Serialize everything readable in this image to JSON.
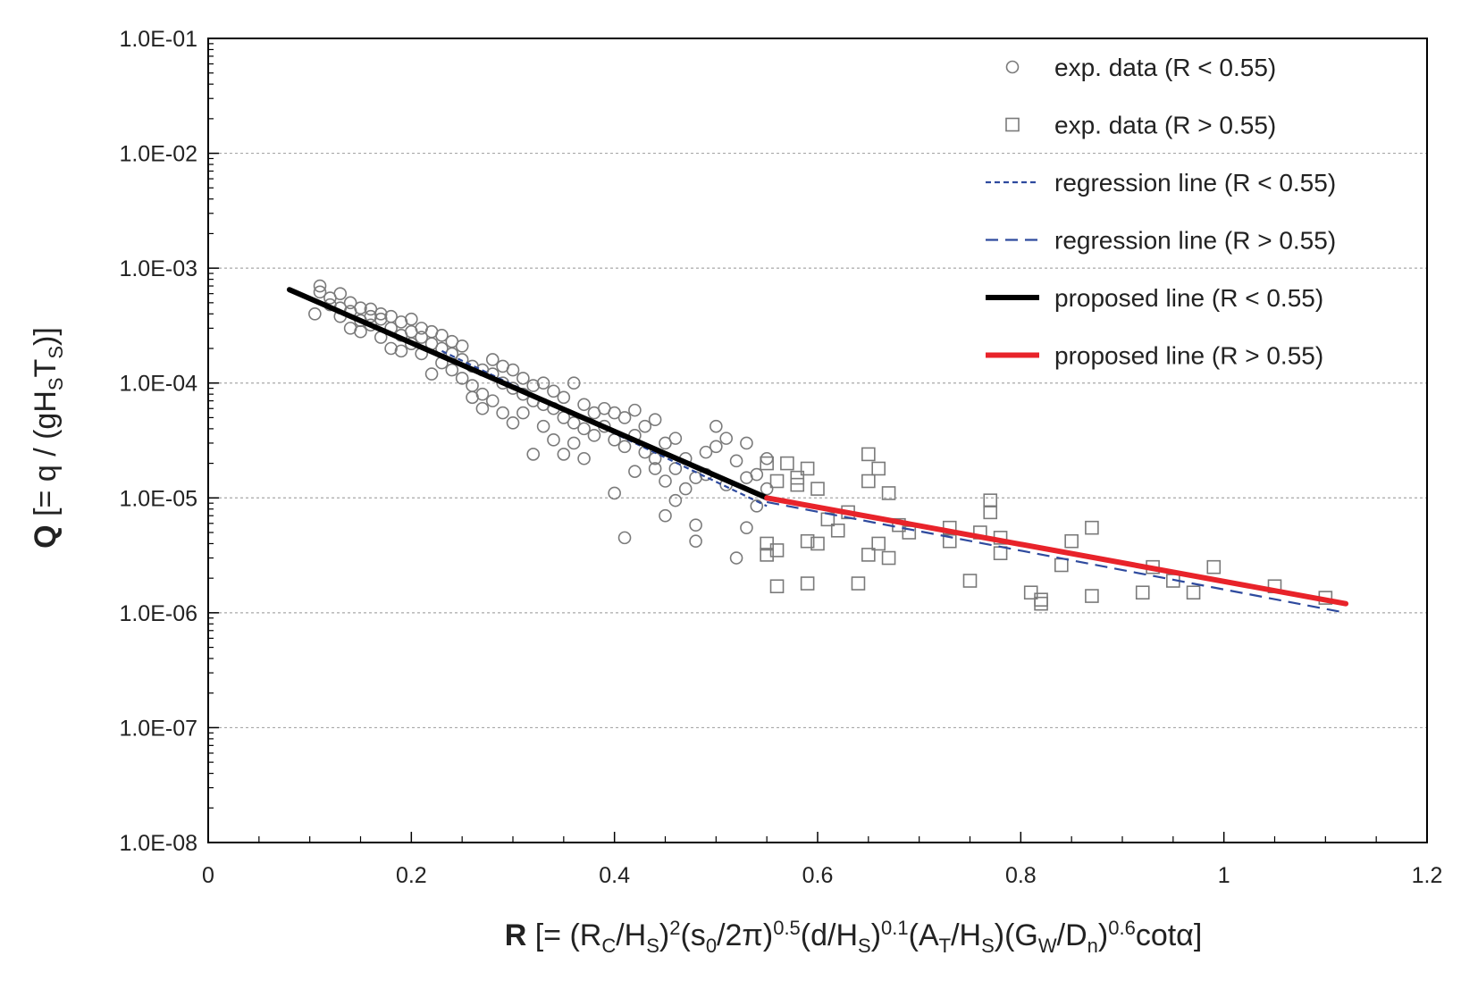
{
  "chart_data": {
    "type": "scatter",
    "xlim": [
      0,
      1.2
    ],
    "ylim": [
      1e-08,
      0.1
    ],
    "yscale": "log",
    "grid": "horizontal dotted",
    "legend_position": "top-right",
    "x_ticks": [
      {
        "value": 0,
        "label": "0"
      },
      {
        "value": 0.2,
        "label": "0.2"
      },
      {
        "value": 0.4,
        "label": "0.4"
      },
      {
        "value": 0.6,
        "label": "0.6"
      },
      {
        "value": 0.8,
        "label": "0.8"
      },
      {
        "value": 1.0,
        "label": "1"
      },
      {
        "value": 1.2,
        "label": "1.2"
      }
    ],
    "y_ticks": [
      {
        "value": 0.1,
        "label": "1.0E-01"
      },
      {
        "value": 0.01,
        "label": "1.0E-02"
      },
      {
        "value": 0.001,
        "label": "1.0E-03"
      },
      {
        "value": 0.0001,
        "label": "1.0E-04"
      },
      {
        "value": 1e-05,
        "label": "1.0E-05"
      },
      {
        "value": 1e-06,
        "label": "1.0E-06"
      },
      {
        "value": 1e-07,
        "label": "1.0E-07"
      },
      {
        "value": 1e-08,
        "label": "1.0E-08"
      }
    ],
    "xlabel": {
      "symbol": "R",
      "parts": [
        {
          "t": " [= (R"
        },
        {
          "t": "C",
          "s": "sub"
        },
        {
          "t": "/H"
        },
        {
          "t": "S",
          "s": "sub"
        },
        {
          "t": ")"
        },
        {
          "t": "2",
          "s": "sup"
        },
        {
          "t": "(s"
        },
        {
          "t": "0",
          "s": "sub"
        },
        {
          "t": "/2π)"
        },
        {
          "t": "0.5",
          "s": "sup"
        },
        {
          "t": "(d/H"
        },
        {
          "t": "S",
          "s": "sub"
        },
        {
          "t": ")"
        },
        {
          "t": "0.1",
          "s": "sup"
        },
        {
          "t": "(A"
        },
        {
          "t": "T",
          "s": "sub"
        },
        {
          "t": "/H"
        },
        {
          "t": "S",
          "s": "sub"
        },
        {
          "t": ")"
        },
        {
          "t": "(G"
        },
        {
          "t": "W",
          "s": "sub"
        },
        {
          "t": "/D"
        },
        {
          "t": "n",
          "s": "sub"
        },
        {
          "t": ")"
        },
        {
          "t": "0.6",
          "s": "sup"
        },
        {
          "t": "cotα]"
        }
      ]
    },
    "ylabel": {
      "symbol": "Q",
      "parts": [
        {
          "t": " [= q / (gH"
        },
        {
          "t": "S",
          "s": "sub"
        },
        {
          "t": "T"
        },
        {
          "t": "S",
          "s": "sub"
        },
        {
          "t": ")]"
        }
      ]
    },
    "series": [
      {
        "name": "exp. data (R < 0.55)",
        "kind": "scatter",
        "marker": "circle",
        "color": "#7a7a7a",
        "points": [
          [
            0.11,
            0.00062
          ],
          [
            0.11,
            0.0007
          ],
          [
            0.105,
            0.0004
          ],
          [
            0.12,
            0.00048
          ],
          [
            0.12,
            0.00055
          ],
          [
            0.13,
            0.00045
          ],
          [
            0.13,
            0.0006
          ],
          [
            0.13,
            0.00038
          ],
          [
            0.14,
            0.00042
          ],
          [
            0.14,
            0.0005
          ],
          [
            0.14,
            0.0003
          ],
          [
            0.15,
            0.00035
          ],
          [
            0.15,
            0.00045
          ],
          [
            0.15,
            0.00028
          ],
          [
            0.16,
            0.00038
          ],
          [
            0.16,
            0.00032
          ],
          [
            0.16,
            0.00044
          ],
          [
            0.17,
            0.00036
          ],
          [
            0.17,
            0.00025
          ],
          [
            0.17,
            0.0004
          ],
          [
            0.18,
            0.0003
          ],
          [
            0.18,
            0.0002
          ],
          [
            0.18,
            0.00038
          ],
          [
            0.19,
            0.00026
          ],
          [
            0.19,
            0.00034
          ],
          [
            0.19,
            0.00019
          ],
          [
            0.2,
            0.00028
          ],
          [
            0.2,
            0.00036
          ],
          [
            0.2,
            0.00022
          ],
          [
            0.21,
            0.00025
          ],
          [
            0.21,
            0.00018
          ],
          [
            0.21,
            0.0003
          ],
          [
            0.22,
            0.00022
          ],
          [
            0.22,
            0.00012
          ],
          [
            0.22,
            0.00028
          ],
          [
            0.23,
            0.0002
          ],
          [
            0.23,
            0.00015
          ],
          [
            0.23,
            0.00026
          ],
          [
            0.24,
            0.00018
          ],
          [
            0.24,
            0.00013
          ],
          [
            0.24,
            0.00023
          ],
          [
            0.25,
            0.00016
          ],
          [
            0.25,
            0.00011
          ],
          [
            0.25,
            0.00021
          ],
          [
            0.26,
            0.00014
          ],
          [
            0.26,
            9.5e-05
          ],
          [
            0.26,
            7.5e-05
          ],
          [
            0.27,
            0.00013
          ],
          [
            0.27,
            8e-05
          ],
          [
            0.27,
            6e-05
          ],
          [
            0.28,
            0.00012
          ],
          [
            0.28,
            7e-05
          ],
          [
            0.28,
            0.00016
          ],
          [
            0.29,
            0.0001
          ],
          [
            0.29,
            5.5e-05
          ],
          [
            0.29,
            0.00014
          ],
          [
            0.3,
            9e-05
          ],
          [
            0.3,
            4.5e-05
          ],
          [
            0.3,
            0.00013
          ],
          [
            0.31,
            8e-05
          ],
          [
            0.31,
            5.5e-05
          ],
          [
            0.31,
            0.00011
          ],
          [
            0.32,
            7e-05
          ],
          [
            0.32,
            2.4e-05
          ],
          [
            0.32,
            9.5e-05
          ],
          [
            0.33,
            6.5e-05
          ],
          [
            0.33,
            4.2e-05
          ],
          [
            0.33,
            0.0001
          ],
          [
            0.34,
            6e-05
          ],
          [
            0.34,
            3.2e-05
          ],
          [
            0.34,
            8.5e-05
          ],
          [
            0.35,
            5e-05
          ],
          [
            0.35,
            2.4e-05
          ],
          [
            0.35,
            7.5e-05
          ],
          [
            0.36,
            4.5e-05
          ],
          [
            0.36,
            3e-05
          ],
          [
            0.36,
            0.0001
          ],
          [
            0.37,
            4e-05
          ],
          [
            0.37,
            2.2e-05
          ],
          [
            0.37,
            6.5e-05
          ],
          [
            0.38,
            3.5e-05
          ],
          [
            0.38,
            5.5e-05
          ],
          [
            0.39,
            4.2e-05
          ],
          [
            0.39,
            6e-05
          ],
          [
            0.4,
            3.2e-05
          ],
          [
            0.4,
            1.1e-05
          ],
          [
            0.4,
            5.5e-05
          ],
          [
            0.41,
            2.8e-05
          ],
          [
            0.41,
            4.5e-06
          ],
          [
            0.41,
            5e-05
          ],
          [
            0.42,
            3.5e-05
          ],
          [
            0.42,
            1.7e-05
          ],
          [
            0.42,
            5.8e-05
          ],
          [
            0.43,
            2.5e-05
          ],
          [
            0.43,
            4.2e-05
          ],
          [
            0.44,
            2.2e-05
          ],
          [
            0.44,
            1.8e-05
          ],
          [
            0.44,
            4.8e-05
          ],
          [
            0.45,
            1.4e-05
          ],
          [
            0.45,
            7e-06
          ],
          [
            0.45,
            3e-05
          ],
          [
            0.46,
            1.8e-05
          ],
          [
            0.46,
            9.5e-06
          ],
          [
            0.46,
            3.3e-05
          ],
          [
            0.47,
            2.2e-05
          ],
          [
            0.47,
            1.2e-05
          ],
          [
            0.48,
            1.5e-05
          ],
          [
            0.48,
            4.2e-06
          ],
          [
            0.48,
            5.8e-06
          ],
          [
            0.49,
            2.5e-05
          ],
          [
            0.49,
            1.6e-05
          ],
          [
            0.5,
            4.2e-05
          ],
          [
            0.5,
            2.8e-05
          ],
          [
            0.51,
            1.3e-05
          ],
          [
            0.51,
            3.3e-05
          ],
          [
            0.52,
            3e-06
          ],
          [
            0.52,
            2.1e-05
          ],
          [
            0.53,
            5.5e-06
          ],
          [
            0.53,
            1.5e-05
          ],
          [
            0.53,
            3e-05
          ],
          [
            0.54,
            8.5e-06
          ],
          [
            0.54,
            1.6e-05
          ],
          [
            0.55,
            2.2e-05
          ],
          [
            0.55,
            1.2e-05
          ]
        ]
      },
      {
        "name": "exp. data (R > 0.55)",
        "kind": "scatter",
        "marker": "square",
        "color": "#7a7a7a",
        "points": [
          [
            0.55,
            2e-05
          ],
          [
            0.55,
            4e-06
          ],
          [
            0.55,
            3.2e-06
          ],
          [
            0.56,
            3.5e-06
          ],
          [
            0.56,
            1.7e-06
          ],
          [
            0.56,
            1.4e-05
          ],
          [
            0.57,
            2e-05
          ],
          [
            0.58,
            1.5e-05
          ],
          [
            0.58,
            1.3e-05
          ],
          [
            0.59,
            1.8e-05
          ],
          [
            0.59,
            4.2e-06
          ],
          [
            0.59,
            1.8e-06
          ],
          [
            0.6,
            1.2e-05
          ],
          [
            0.6,
            4e-06
          ],
          [
            0.61,
            6.5e-06
          ],
          [
            0.62,
            5.2e-06
          ],
          [
            0.63,
            7.5e-06
          ],
          [
            0.64,
            1.8e-06
          ],
          [
            0.65,
            3.2e-06
          ],
          [
            0.65,
            1.4e-05
          ],
          [
            0.65,
            2.4e-05
          ],
          [
            0.66,
            1.8e-05
          ],
          [
            0.66,
            4e-06
          ],
          [
            0.67,
            1.1e-05
          ],
          [
            0.67,
            3e-06
          ],
          [
            0.68,
            5.8e-06
          ],
          [
            0.69,
            5e-06
          ],
          [
            0.73,
            5.5e-06
          ],
          [
            0.73,
            4.2e-06
          ],
          [
            0.75,
            1.9e-06
          ],
          [
            0.76,
            5e-06
          ],
          [
            0.77,
            7.5e-06
          ],
          [
            0.77,
            9.5e-06
          ],
          [
            0.78,
            4.5e-06
          ],
          [
            0.78,
            3.3e-06
          ],
          [
            0.81,
            1.5e-06
          ],
          [
            0.82,
            1.3e-06
          ],
          [
            0.82,
            1.2e-06
          ],
          [
            0.84,
            2.6e-06
          ],
          [
            0.85,
            4.2e-06
          ],
          [
            0.87,
            1.4e-06
          ],
          [
            0.87,
            5.5e-06
          ],
          [
            0.92,
            1.5e-06
          ],
          [
            0.93,
            2.5e-06
          ],
          [
            0.95,
            1.9e-06
          ],
          [
            0.97,
            1.5e-06
          ],
          [
            0.99,
            2.5e-06
          ],
          [
            1.05,
            1.7e-06
          ],
          [
            1.1,
            1.35e-06
          ]
        ]
      },
      {
        "name": "regression line (R < 0.55)",
        "kind": "line",
        "style": "short-dash",
        "color": "#2e4a9e",
        "points": [
          [
            0.23,
            0.00019
          ],
          [
            0.55,
            8.5e-06
          ]
        ]
      },
      {
        "name": "regression line (R > 0.55)",
        "kind": "line",
        "style": "long-dash",
        "color": "#2e4a9e",
        "points": [
          [
            0.55,
            9.2e-06
          ],
          [
            1.12,
            1e-06
          ]
        ]
      },
      {
        "name": "proposed line (R < 0.55)",
        "kind": "line",
        "style": "solid",
        "color": "#000000",
        "points": [
          [
            0.08,
            0.00065
          ],
          [
            0.55,
            1e-05
          ]
        ]
      },
      {
        "name": "proposed line (R > 0.55)",
        "kind": "line",
        "style": "solid",
        "color": "#e8232a",
        "points": [
          [
            0.55,
            1e-05
          ],
          [
            1.12,
            1.2e-06
          ]
        ]
      }
    ]
  }
}
